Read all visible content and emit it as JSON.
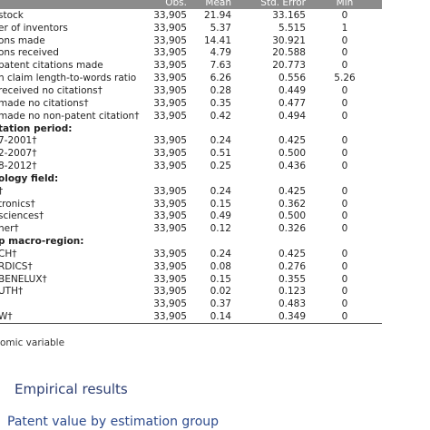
{
  "table": {
    "columns": [
      "Obs.",
      "Mean",
      "Std. Error",
      "Min"
    ],
    "rows": [
      {
        "label": "stock",
        "cells": [
          "33,905",
          "21.94",
          "33.165",
          "0"
        ]
      },
      {
        "label": "er of inventors",
        "cells": [
          "33,905",
          "5.37",
          "5.515",
          "1"
        ]
      },
      {
        "label": "ons made",
        "cells": [
          "33,905",
          "14.41",
          "30.921",
          "0"
        ]
      },
      {
        "label": "ons received",
        "cells": [
          "33,905",
          "4.79",
          "20.588",
          "0"
        ]
      },
      {
        "label": "patent citations made",
        "cells": [
          "33,905",
          "7.63",
          "20.773",
          "0"
        ]
      },
      {
        "label": "n claim length-to-words ratio",
        "cells": [
          "33,905",
          "6.26",
          "0.556",
          "5.26"
        ]
      },
      {
        "label": "received no citations†",
        "cells": [
          "33,905",
          "0.28",
          "0.449",
          "0"
        ]
      },
      {
        "label": "made no citations†",
        "cells": [
          "33,905",
          "0.35",
          "0.477",
          "0"
        ]
      },
      {
        "label": "made no non-patent citation†",
        "cells": [
          "33,905",
          "0.42",
          "0.494",
          "0"
        ]
      },
      {
        "label": "tation period:"
      },
      {
        "label": "7-2001†",
        "cells": [
          "33,905",
          "0.24",
          "0.425",
          "0"
        ]
      },
      {
        "label": "2-2007†",
        "cells": [
          "33,905",
          "0.51",
          "0.500",
          "0"
        ]
      },
      {
        "label": "8-2012†",
        "cells": [
          "33,905",
          "0.25",
          "0.436",
          "0"
        ]
      },
      {
        "label": "ology field:"
      },
      {
        "label": "†",
        "cells": [
          "33,905",
          "0.24",
          "0.425",
          "0"
        ]
      },
      {
        "label": "tronics†",
        "cells": [
          "33,905",
          "0.15",
          "0.362",
          "0"
        ]
      },
      {
        "label": "sciences†",
        "cells": [
          "33,905",
          "0.49",
          "0.500",
          "0"
        ]
      },
      {
        "label": "her†",
        "cells": [
          "33,905",
          "0.12",
          "0.326",
          "0"
        ]
      },
      {
        "label": "p macro-region:"
      },
      {
        "label": "CH†",
        "cells": [
          "33,905",
          "0.24",
          "0.425",
          "0"
        ]
      },
      {
        "label": "RDICS†",
        "cells": [
          "33,905",
          "0.08",
          "0.276",
          "0"
        ]
      },
      {
        "label": "BENELUX†",
        "cells": [
          "33,905",
          "0.15",
          "0.355",
          "0"
        ]
      },
      {
        "label": "UTH†",
        "cells": [
          "33,905",
          "0.02",
          "0.123",
          "0"
        ]
      },
      {
        "cells": [
          "33,905",
          "0.37",
          "0.483",
          "0"
        ]
      },
      {
        "label": "W†",
        "cells": [
          "33,905",
          "0.14",
          "0.349",
          "0"
        ]
      }
    ]
  },
  "footnote": "omic variable",
  "section": "Empirical results",
  "subsection": "Patent value by estimation group"
}
